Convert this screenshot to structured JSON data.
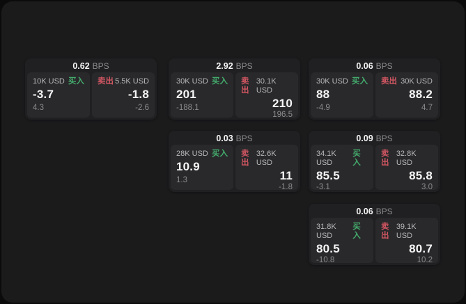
{
  "page": {
    "bg": "#0b0b0c",
    "panel_bg": "#1b1b1c",
    "card_bg": "#202022",
    "subcard_bg": "#29292b"
  },
  "colors": {
    "buy": "#44aa6c",
    "sell": "#d15662"
  },
  "labels": {
    "bps_suffix": "BPS",
    "buy": "买入",
    "sell": "卖出"
  },
  "cards": [
    {
      "col": 1,
      "row": 1,
      "bps": "0.62",
      "buy": {
        "size": "10K USD",
        "value": "-3.7",
        "delta": "4.3"
      },
      "sell": {
        "size": "5.5K USD",
        "value": "-1.8",
        "delta": "-2.6"
      }
    },
    {
      "col": 2,
      "row": 1,
      "bps": "2.92",
      "buy": {
        "size": "30K USD",
        "value": "201",
        "delta": "-188.1"
      },
      "sell": {
        "size": "30.1K USD",
        "value": "210",
        "delta": "196.5"
      }
    },
    {
      "col": 3,
      "row": 1,
      "bps": "0.06",
      "buy": {
        "size": "30K USD",
        "value": "88",
        "delta": "-4.9"
      },
      "sell": {
        "size": "30K USD",
        "value": "88.2",
        "delta": "4.7"
      }
    },
    {
      "col": 2,
      "row": 2,
      "bps": "0.03",
      "buy": {
        "size": "28K USD",
        "value": "10.9",
        "delta": "1.3"
      },
      "sell": {
        "size": "32.6K USD",
        "value": "11",
        "delta": "-1.8"
      }
    },
    {
      "col": 3,
      "row": 2,
      "bps": "0.09",
      "buy": {
        "size": "34.1K USD",
        "value": "85.5",
        "delta": "-3.1"
      },
      "sell": {
        "size": "32.8K USD",
        "value": "85.8",
        "delta": "3.0"
      }
    },
    {
      "col": 3,
      "row": 3,
      "bps": "0.06",
      "buy": {
        "size": "31.8K USD",
        "value": "80.5",
        "delta": "-10.8"
      },
      "sell": {
        "size": "39.1K USD",
        "value": "80.7",
        "delta": "10.2"
      }
    }
  ]
}
